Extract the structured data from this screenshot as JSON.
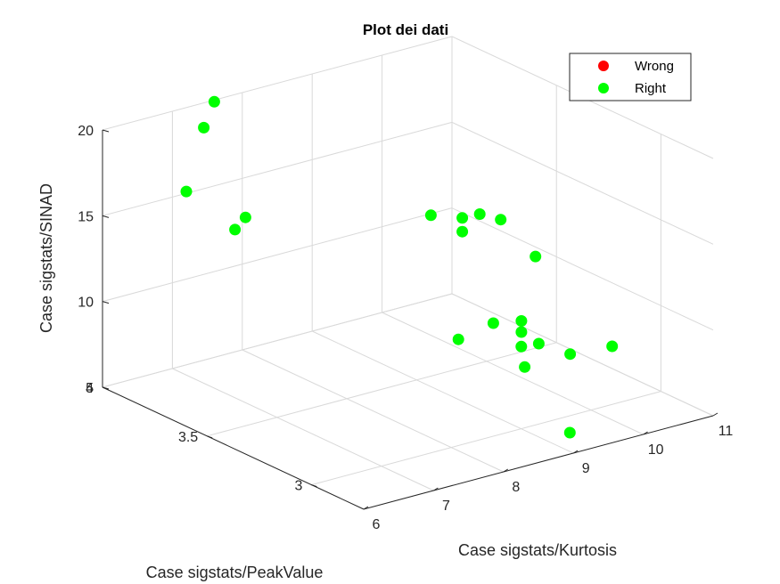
{
  "chart_data": {
    "type": "scatter",
    "title": "Plot dei dati",
    "xlabel": "Case sigstats/Kurtosis",
    "ylabel": "Case sigstats/PeakValue",
    "zlabel": "Case sigstats/SINAD",
    "xlim": [
      6,
      11
    ],
    "ylim": [
      2.75,
      4
    ],
    "zlim": [
      5,
      20
    ],
    "x_ticks": [
      "6",
      "7",
      "8",
      "9",
      "10",
      "11"
    ],
    "y_ticks": [
      "3",
      "3.5",
      "4"
    ],
    "z_ticks": [
      "5",
      "10",
      "15",
      "20"
    ],
    "grid": true,
    "legend_position": "top-right",
    "series": [
      {
        "name": "Wrong",
        "color": "#ff0000",
        "points": []
      },
      {
        "name": "Right",
        "color": "#00ff00",
        "points": [
          {
            "x": 7.6,
            "y": 4.0,
            "z": 19.9
          },
          {
            "x": 7.3,
            "y": 3.95,
            "z": 19.0
          },
          {
            "x": 6.9,
            "y": 3.9,
            "z": 16.0
          },
          {
            "x": 6.7,
            "y": 3.55,
            "z": 16.7
          },
          {
            "x": 6.4,
            "y": 3.5,
            "z": 16.6
          },
          {
            "x": 10.8,
            "y": 3.8,
            "z": 11.0
          },
          {
            "x": 10.95,
            "y": 3.75,
            "z": 10.8
          },
          {
            "x": 10.7,
            "y": 3.85,
            "z": 10.6
          },
          {
            "x": 10.4,
            "y": 3.9,
            "z": 10.8
          },
          {
            "x": 10.4,
            "y": 3.75,
            "z": 10.7
          },
          {
            "x": 10.85,
            "y": 3.55,
            "z": 9.9
          },
          {
            "x": 9.2,
            "y": 3.2,
            "z": 9.8
          },
          {
            "x": 8.7,
            "y": 3.2,
            "z": 9.4
          },
          {
            "x": 9.6,
            "y": 3.2,
            "z": 8.0
          },
          {
            "x": 10.2,
            "y": 3.4,
            "z": 7.7
          },
          {
            "x": 10.05,
            "y": 3.35,
            "z": 7.5
          },
          {
            "x": 10.15,
            "y": 3.3,
            "z": 7.0
          },
          {
            "x": 10.3,
            "y": 3.2,
            "z": 6.8
          },
          {
            "x": 10.9,
            "y": 3.2,
            "z": 6.6
          },
          {
            "x": 9.5,
            "y": 3.15,
            "z": 7.2
          },
          {
            "x": 9.1,
            "y": 2.8,
            "z": 5.8
          }
        ]
      }
    ]
  }
}
